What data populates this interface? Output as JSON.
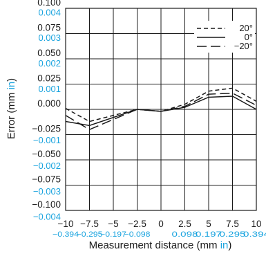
{
  "colors": {
    "axis": "#1a1a1a",
    "secondary": "#1aa4df",
    "grid": "#1a1a1a"
  },
  "chart_data": {
    "type": "line",
    "xlabel": "Measurement distance (mm ",
    "xlabel_unit": "in",
    "xlabel_close": ")",
    "ylabel": "Error (mm ",
    "ylabel_unit": "in",
    "ylabel_close": ")",
    "xlim": [
      -10,
      10
    ],
    "ylim": [
      -0.1,
      0.1
    ],
    "grid": true,
    "legend_position": "top-right",
    "x_ticks": [
      {
        "value": -10,
        "mm": "−10",
        "in": "−0.394"
      },
      {
        "value": -7.5,
        "mm": "−7.5",
        "in": "−0.295"
      },
      {
        "value": -5,
        "mm": "−5",
        "in": "−0.197"
      },
      {
        "value": -2.5,
        "mm": "−2.5",
        "in": "−0.098"
      },
      {
        "value": 0,
        "mm": "0",
        "in": ""
      },
      {
        "value": 2.5,
        "mm": "2.5",
        "in": "0.098"
      },
      {
        "value": 5,
        "mm": "5",
        "in": "0.197"
      },
      {
        "value": 7.5,
        "mm": "7.5",
        "in": "0.295"
      },
      {
        "value": 10,
        "mm": "10",
        "in": "0.394"
      }
    ],
    "y_ticks_mm": [
      {
        "value": 0.1,
        "label": "0.100"
      },
      {
        "value": 0.075,
        "label": "0.075"
      },
      {
        "value": 0.05,
        "label": "0.050"
      },
      {
        "value": 0.025,
        "label": "0.025"
      },
      {
        "value": 0,
        "label": "0.000"
      },
      {
        "value": -0.025,
        "label": "−0.025"
      },
      {
        "value": -0.05,
        "label": "−0.050"
      },
      {
        "value": -0.075,
        "label": "−0.075"
      },
      {
        "value": -0.1,
        "label": "−0.100"
      }
    ],
    "y_ticks_in": [
      {
        "value": 0.004,
        "label": "0.004"
      },
      {
        "value": 0.003,
        "label": "0.003"
      },
      {
        "value": 0.002,
        "label": "0.002"
      },
      {
        "value": 0.001,
        "label": "0.001"
      },
      {
        "value": -0.001,
        "label": "−0.001"
      },
      {
        "value": -0.002,
        "label": "−0.002"
      },
      {
        "value": -0.003,
        "label": "−0.003"
      },
      {
        "value": -0.004,
        "label": "−0.004"
      }
    ],
    "x": [
      -10,
      -7.5,
      -2.5,
      0,
      2.5,
      5,
      7.5,
      10
    ],
    "series": [
      {
        "name": "20°",
        "dash": "short",
        "values": [
          0.001,
          -0.012,
          0.0,
          -0.002,
          0.005,
          0.018,
          0.021,
          0.008
        ]
      },
      {
        "name": "0°",
        "dash": "solid",
        "values": [
          -0.012,
          -0.016,
          0.0,
          -0.002,
          0.002,
          0.012,
          0.013,
          0.0
        ]
      },
      {
        "name": "−20°",
        "dash": "long",
        "values": [
          -0.006,
          -0.02,
          0.0,
          -0.002,
          0.003,
          0.015,
          0.016,
          0.004
        ]
      }
    ]
  }
}
